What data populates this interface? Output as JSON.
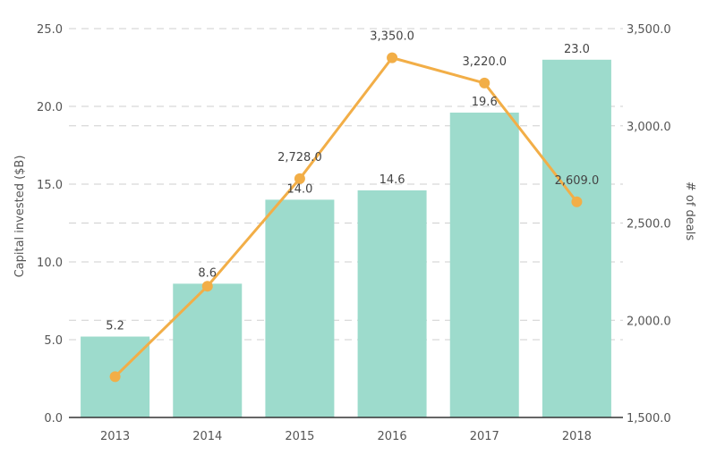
{
  "chart_data": {
    "type": "bar",
    "categories": [
      "2013",
      "2014",
      "2015",
      "2016",
      "2017",
      "2018"
    ],
    "series": [
      {
        "type": "bar",
        "axis": "left",
        "color": "#9ddbcc",
        "values": [
          5.2,
          8.6,
          14.0,
          14.6,
          19.6,
          23.0
        ],
        "labels": [
          "5.2",
          "8.6",
          "14.0",
          "14.6",
          "19.6",
          "23.0"
        ]
      },
      {
        "type": "line",
        "axis": "right",
        "color": "#f2ae47",
        "values": [
          1710,
          2175,
          2728,
          3350,
          3220,
          2609
        ],
        "labels": [
          "",
          "",
          "2,728.0",
          "3,350.0",
          "3,220.0",
          "2,609.0"
        ]
      }
    ],
    "ylabel": "Capital invested ($B)",
    "y2label": "# of deals",
    "ylim": [
      0,
      25
    ],
    "y2lim": [
      1500,
      3500
    ],
    "yticks": [
      "0.0",
      "5.0",
      "10.0",
      "15.0",
      "20.0",
      "25.0"
    ],
    "y2ticks": [
      "1,500.0",
      "2,000.0",
      "2,500.0",
      "3,000.0",
      "3,500.0"
    ],
    "grid": true
  }
}
